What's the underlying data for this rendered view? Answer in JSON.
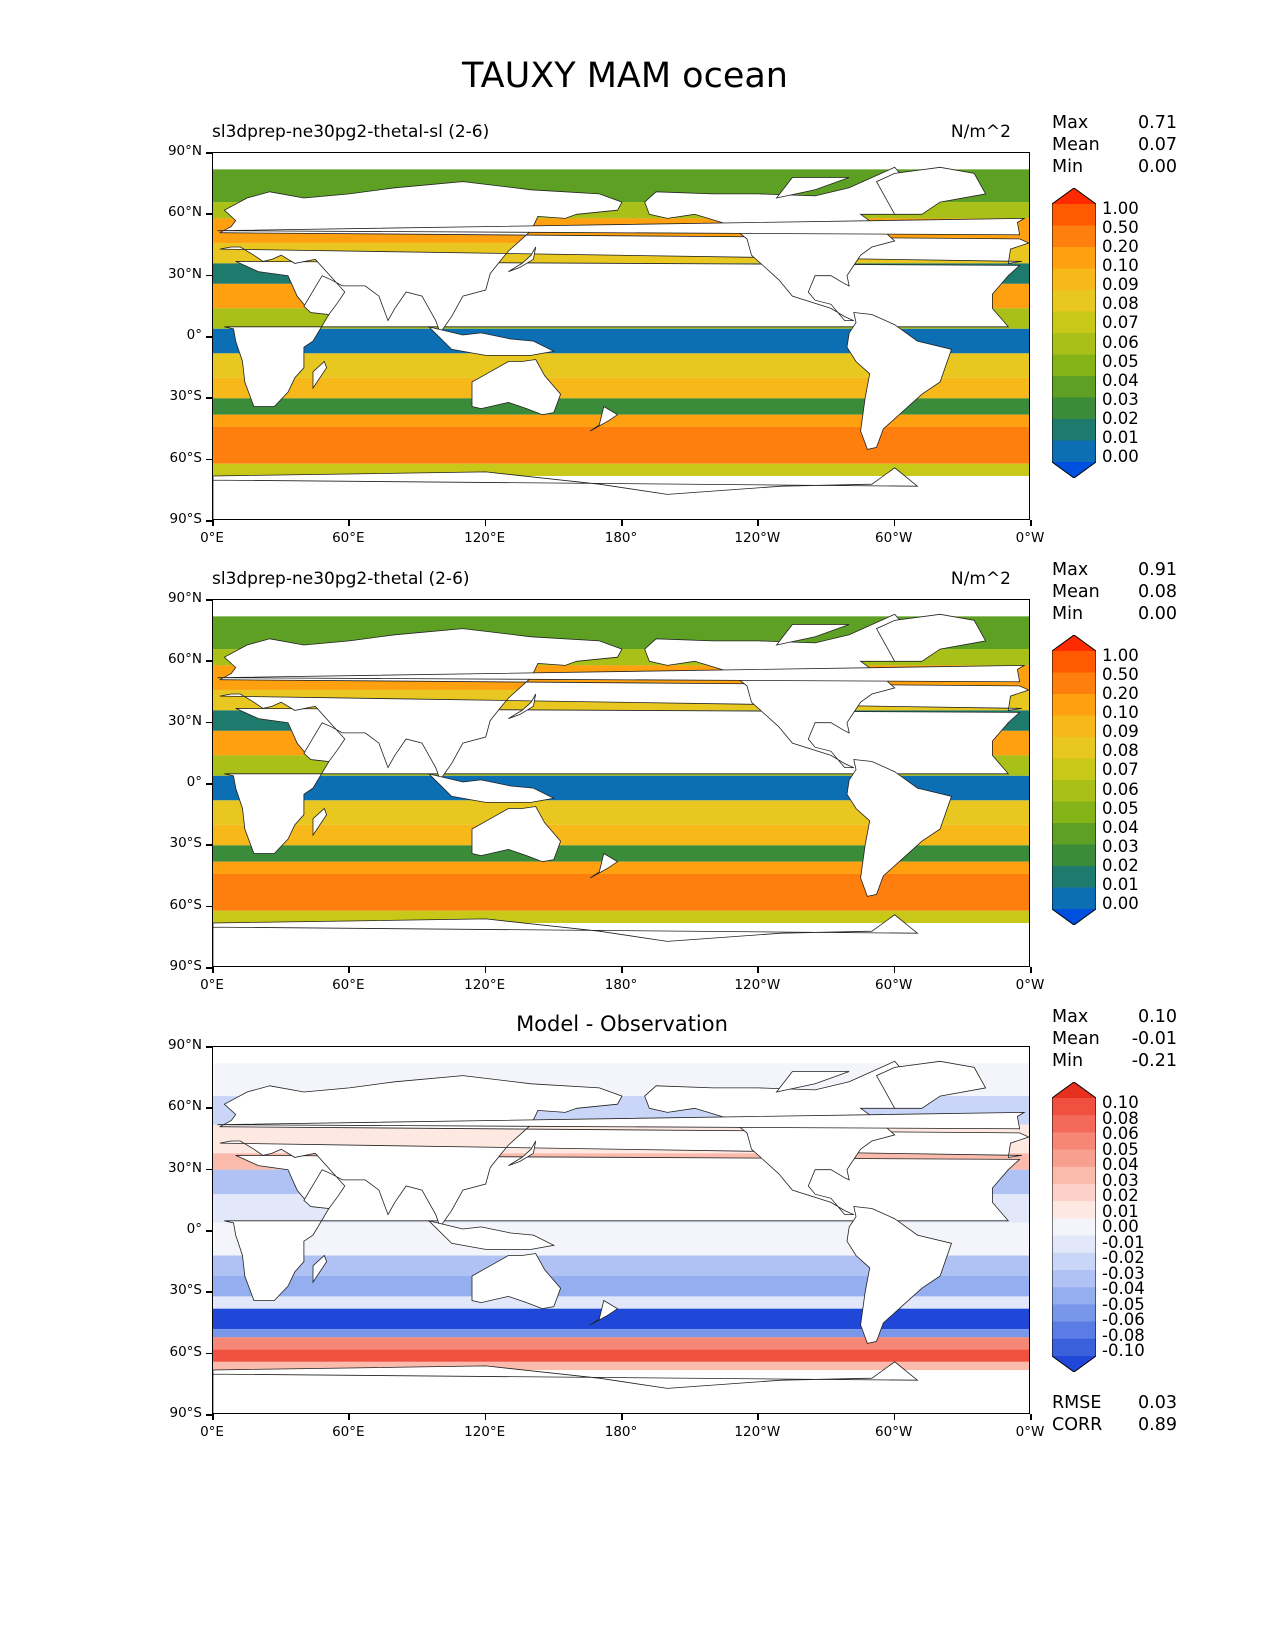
{
  "title": "TAUXY MAM ocean",
  "panels": [
    {
      "id": "test",
      "left_title": "sl3dprep-ne30pg2-thetal-sl (2-6)",
      "right_title": "N/m^2",
      "center_title": "",
      "stats": [
        [
          "Max",
          "0.71"
        ],
        [
          "Mean",
          "0.07"
        ],
        [
          "Min",
          "0.00"
        ]
      ],
      "footer_stats": [],
      "colorbar_labels": [
        "1.00",
        "0.50",
        "0.20",
        "0.10",
        "0.09",
        "0.08",
        "0.07",
        "0.06",
        "0.05",
        "0.04",
        "0.03",
        "0.02",
        "0.01",
        "0.00"
      ],
      "colorbar_colors": [
        "#ff2a00",
        "#ff5a00",
        "#ff7f0e",
        "#ffa010",
        "#f7b81a",
        "#e8c820",
        "#c8c818",
        "#a8c018",
        "#84b418",
        "#5ea024",
        "#3a8c3a",
        "#1f7a6e",
        "#0c6fb4",
        "#0050e0"
      ]
    },
    {
      "id": "reference",
      "left_title": "sl3dprep-ne30pg2-thetal (2-6)",
      "right_title": "N/m^2",
      "center_title": "",
      "stats": [
        [
          "Max",
          "0.91"
        ],
        [
          "Mean",
          "0.08"
        ],
        [
          "Min",
          "0.00"
        ]
      ],
      "footer_stats": [],
      "colorbar_labels": [
        "1.00",
        "0.50",
        "0.20",
        "0.10",
        "0.09",
        "0.08",
        "0.07",
        "0.06",
        "0.05",
        "0.04",
        "0.03",
        "0.02",
        "0.01",
        "0.00"
      ],
      "colorbar_colors": [
        "#ff2a00",
        "#ff5a00",
        "#ff7f0e",
        "#ffa010",
        "#f7b81a",
        "#e8c820",
        "#c8c818",
        "#a8c018",
        "#84b418",
        "#5ea024",
        "#3a8c3a",
        "#1f7a6e",
        "#0c6fb4",
        "#0050e0"
      ]
    },
    {
      "id": "diff",
      "left_title": "",
      "right_title": "",
      "center_title": "Model - Observation",
      "stats": [
        [
          "Max",
          "0.10"
        ],
        [
          "Mean",
          "-0.01"
        ],
        [
          "Min",
          "-0.21"
        ]
      ],
      "footer_stats": [
        [
          "RMSE",
          "0.03"
        ],
        [
          "CORR",
          "0.89"
        ]
      ],
      "colorbar_labels": [
        "0.10",
        "0.08",
        "0.06",
        "0.05",
        "0.04",
        "0.03",
        "0.02",
        "0.01",
        "0.00",
        "-0.01",
        "-0.02",
        "-0.03",
        "-0.04",
        "-0.05",
        "-0.06",
        "-0.08",
        "-0.10"
      ],
      "colorbar_colors": [
        "#e83020",
        "#f05040",
        "#f46a5a",
        "#f68676",
        "#f8a090",
        "#fabaac",
        "#fcd2c8",
        "#fde8e2",
        "#f4f4fb",
        "#e2e8fa",
        "#cad6f7",
        "#b0c2f3",
        "#94aeef",
        "#7896ea",
        "#5a7ce4",
        "#3a60dc",
        "#1f48d8"
      ]
    }
  ],
  "y_ticks": [
    "90°N",
    "60°N",
    "30°N",
    "0°",
    "30°S",
    "60°S",
    "90°S"
  ],
  "x_ticks": [
    "0°E",
    "60°E",
    "120°E",
    "180°",
    "120°W",
    "60°W",
    "0°W"
  ]
}
